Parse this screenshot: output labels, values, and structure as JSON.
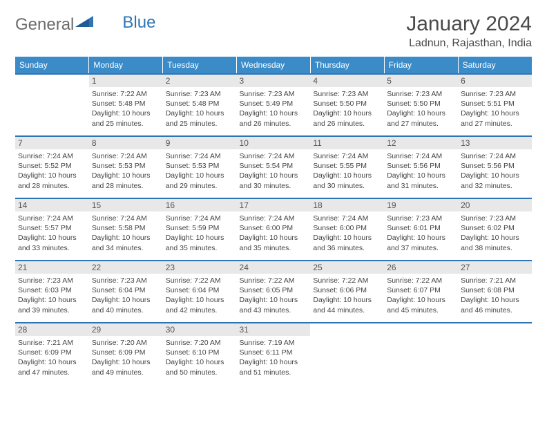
{
  "brand": {
    "text1": "General",
    "text2": "Blue"
  },
  "header": {
    "title": "January 2024",
    "location": "Ladnun, Rajasthan, India"
  },
  "colors": {
    "header_bg": "#3b8bc8",
    "header_text": "#ffffff",
    "divider": "#2e75b6",
    "daynum_bg": "#e8e8e8",
    "text": "#444444",
    "brand_gray": "#6b6b6b",
    "brand_blue": "#2e75b6"
  },
  "fonts": {
    "title_size": 30,
    "location_size": 16,
    "dow_size": 12,
    "detail_size": 10.5
  },
  "days_of_week": [
    "Sunday",
    "Monday",
    "Tuesday",
    "Wednesday",
    "Thursday",
    "Friday",
    "Saturday"
  ],
  "weeks": [
    [
      null,
      {
        "n": "1",
        "sr": "Sunrise: 7:22 AM",
        "ss": "Sunset: 5:48 PM",
        "dl": "Daylight: 10 hours and 25 minutes."
      },
      {
        "n": "2",
        "sr": "Sunrise: 7:23 AM",
        "ss": "Sunset: 5:48 PM",
        "dl": "Daylight: 10 hours and 25 minutes."
      },
      {
        "n": "3",
        "sr": "Sunrise: 7:23 AM",
        "ss": "Sunset: 5:49 PM",
        "dl": "Daylight: 10 hours and 26 minutes."
      },
      {
        "n": "4",
        "sr": "Sunrise: 7:23 AM",
        "ss": "Sunset: 5:50 PM",
        "dl": "Daylight: 10 hours and 26 minutes."
      },
      {
        "n": "5",
        "sr": "Sunrise: 7:23 AM",
        "ss": "Sunset: 5:50 PM",
        "dl": "Daylight: 10 hours and 27 minutes."
      },
      {
        "n": "6",
        "sr": "Sunrise: 7:23 AM",
        "ss": "Sunset: 5:51 PM",
        "dl": "Daylight: 10 hours and 27 minutes."
      }
    ],
    [
      {
        "n": "7",
        "sr": "Sunrise: 7:24 AM",
        "ss": "Sunset: 5:52 PM",
        "dl": "Daylight: 10 hours and 28 minutes."
      },
      {
        "n": "8",
        "sr": "Sunrise: 7:24 AM",
        "ss": "Sunset: 5:53 PM",
        "dl": "Daylight: 10 hours and 28 minutes."
      },
      {
        "n": "9",
        "sr": "Sunrise: 7:24 AM",
        "ss": "Sunset: 5:53 PM",
        "dl": "Daylight: 10 hours and 29 minutes."
      },
      {
        "n": "10",
        "sr": "Sunrise: 7:24 AM",
        "ss": "Sunset: 5:54 PM",
        "dl": "Daylight: 10 hours and 30 minutes."
      },
      {
        "n": "11",
        "sr": "Sunrise: 7:24 AM",
        "ss": "Sunset: 5:55 PM",
        "dl": "Daylight: 10 hours and 30 minutes."
      },
      {
        "n": "12",
        "sr": "Sunrise: 7:24 AM",
        "ss": "Sunset: 5:56 PM",
        "dl": "Daylight: 10 hours and 31 minutes."
      },
      {
        "n": "13",
        "sr": "Sunrise: 7:24 AM",
        "ss": "Sunset: 5:56 PM",
        "dl": "Daylight: 10 hours and 32 minutes."
      }
    ],
    [
      {
        "n": "14",
        "sr": "Sunrise: 7:24 AM",
        "ss": "Sunset: 5:57 PM",
        "dl": "Daylight: 10 hours and 33 minutes."
      },
      {
        "n": "15",
        "sr": "Sunrise: 7:24 AM",
        "ss": "Sunset: 5:58 PM",
        "dl": "Daylight: 10 hours and 34 minutes."
      },
      {
        "n": "16",
        "sr": "Sunrise: 7:24 AM",
        "ss": "Sunset: 5:59 PM",
        "dl": "Daylight: 10 hours and 35 minutes."
      },
      {
        "n": "17",
        "sr": "Sunrise: 7:24 AM",
        "ss": "Sunset: 6:00 PM",
        "dl": "Daylight: 10 hours and 35 minutes."
      },
      {
        "n": "18",
        "sr": "Sunrise: 7:24 AM",
        "ss": "Sunset: 6:00 PM",
        "dl": "Daylight: 10 hours and 36 minutes."
      },
      {
        "n": "19",
        "sr": "Sunrise: 7:23 AM",
        "ss": "Sunset: 6:01 PM",
        "dl": "Daylight: 10 hours and 37 minutes."
      },
      {
        "n": "20",
        "sr": "Sunrise: 7:23 AM",
        "ss": "Sunset: 6:02 PM",
        "dl": "Daylight: 10 hours and 38 minutes."
      }
    ],
    [
      {
        "n": "21",
        "sr": "Sunrise: 7:23 AM",
        "ss": "Sunset: 6:03 PM",
        "dl": "Daylight: 10 hours and 39 minutes."
      },
      {
        "n": "22",
        "sr": "Sunrise: 7:23 AM",
        "ss": "Sunset: 6:04 PM",
        "dl": "Daylight: 10 hours and 40 minutes."
      },
      {
        "n": "23",
        "sr": "Sunrise: 7:22 AM",
        "ss": "Sunset: 6:04 PM",
        "dl": "Daylight: 10 hours and 42 minutes."
      },
      {
        "n": "24",
        "sr": "Sunrise: 7:22 AM",
        "ss": "Sunset: 6:05 PM",
        "dl": "Daylight: 10 hours and 43 minutes."
      },
      {
        "n": "25",
        "sr": "Sunrise: 7:22 AM",
        "ss": "Sunset: 6:06 PM",
        "dl": "Daylight: 10 hours and 44 minutes."
      },
      {
        "n": "26",
        "sr": "Sunrise: 7:22 AM",
        "ss": "Sunset: 6:07 PM",
        "dl": "Daylight: 10 hours and 45 minutes."
      },
      {
        "n": "27",
        "sr": "Sunrise: 7:21 AM",
        "ss": "Sunset: 6:08 PM",
        "dl": "Daylight: 10 hours and 46 minutes."
      }
    ],
    [
      {
        "n": "28",
        "sr": "Sunrise: 7:21 AM",
        "ss": "Sunset: 6:09 PM",
        "dl": "Daylight: 10 hours and 47 minutes."
      },
      {
        "n": "29",
        "sr": "Sunrise: 7:20 AM",
        "ss": "Sunset: 6:09 PM",
        "dl": "Daylight: 10 hours and 49 minutes."
      },
      {
        "n": "30",
        "sr": "Sunrise: 7:20 AM",
        "ss": "Sunset: 6:10 PM",
        "dl": "Daylight: 10 hours and 50 minutes."
      },
      {
        "n": "31",
        "sr": "Sunrise: 7:19 AM",
        "ss": "Sunset: 6:11 PM",
        "dl": "Daylight: 10 hours and 51 minutes."
      },
      null,
      null,
      null
    ]
  ]
}
